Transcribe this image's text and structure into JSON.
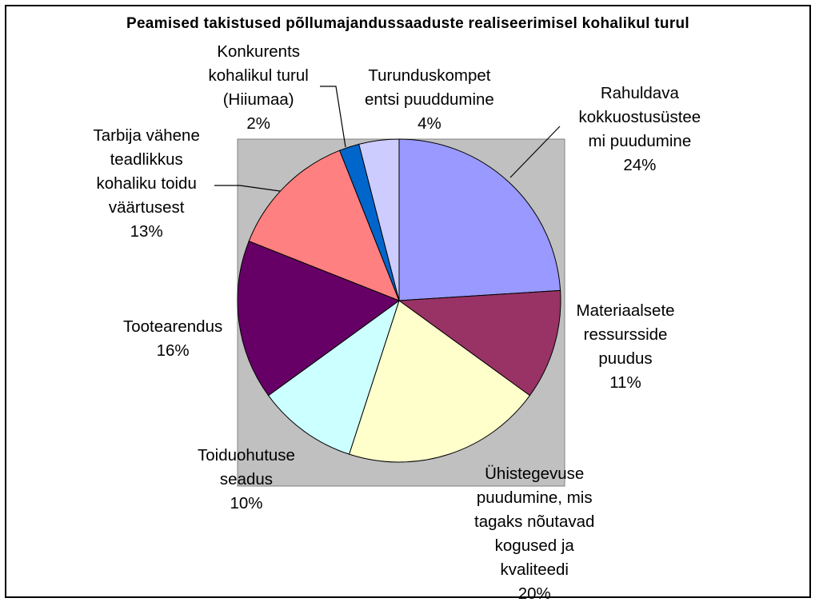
{
  "chart_data": {
    "type": "pie",
    "title": "Peamised takistused põllumajandussaaduste realiseerimisel kohalikul turul",
    "legend": "none",
    "slices": [
      {
        "label": "Rahuldava kokkuostusüstee mi puudumine",
        "label_lines": [
          "Rahuldava",
          "kokkuostusüstee",
          "mi puudumine"
        ],
        "percent_label": "24%",
        "value": 24,
        "color": "#9999FF"
      },
      {
        "label": "Materiaalsete ressursside puudus",
        "label_lines": [
          "Materiaalsete",
          "ressursside",
          "puudus"
        ],
        "percent_label": "11%",
        "value": 11,
        "color": "#993366"
      },
      {
        "label": "Ühistegevuse puudumine, mis tagaks nõutavad kogused ja kvaliteedi",
        "label_lines": [
          "Ühistegevuse",
          "puudumine, mis",
          "tagaks nõutavad",
          "kogused ja",
          "kvaliteedi"
        ],
        "percent_label": "20%",
        "value": 20,
        "color": "#FFFFCC"
      },
      {
        "label": "Toiduohutuse seadus",
        "label_lines": [
          "Toiduohutuse",
          "seadus"
        ],
        "percent_label": "10%",
        "value": 10,
        "color": "#CCFFFF"
      },
      {
        "label": "Tootearendus",
        "label_lines": [
          "Tootearendus"
        ],
        "percent_label": "16%",
        "value": 16,
        "color": "#660066"
      },
      {
        "label": "Tarbija vähene teadlikkus kohaliku toidu väärtusest",
        "label_lines": [
          "Tarbija vähene",
          "teadlikkus",
          "kohaliku toidu",
          "väärtusest"
        ],
        "percent_label": "13%",
        "value": 13,
        "color": "#FF8080"
      },
      {
        "label": "Konkurents kohalikul turul (Hiiumaa)",
        "label_lines": [
          "Konkurents",
          "kohalikul turul",
          "(Hiiumaa)"
        ],
        "percent_label": "2%",
        "value": 2,
        "color": "#0066CC"
      },
      {
        "label": "Turunduskompet entsi puuddumine",
        "label_lines": [
          "Turunduskompet",
          "entsi puuddumine"
        ],
        "percent_label": "4%",
        "value": 4,
        "color": "#CCCCFF"
      }
    ],
    "plot_area_color": "#C0C0C0"
  }
}
